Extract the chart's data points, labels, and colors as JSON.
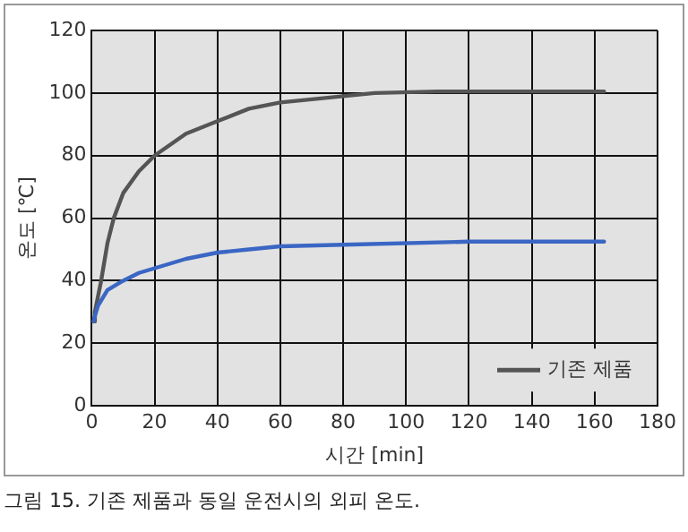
{
  "chart_data": {
    "type": "line",
    "xlabel": "시간 [min]",
    "ylabel": "온도 [℃]",
    "xlim": [
      0,
      180
    ],
    "xticks": [
      0,
      20,
      40,
      60,
      80,
      100,
      120,
      140,
      160,
      180
    ],
    "ylim": [
      0,
      120
    ],
    "yticks": [
      0,
      20,
      40,
      60,
      80,
      100,
      120
    ],
    "series": [
      {
        "color": "#3a66c4",
        "x": [
          0.5,
          2,
          5,
          10,
          15,
          20,
          30,
          40,
          50,
          60,
          80,
          120,
          163
        ],
        "values": [
          27,
          32,
          37,
          40,
          42.5,
          44,
          47,
          49,
          50,
          51,
          51.5,
          52.5,
          52.5
        ]
      },
      {
        "name": "기존 제품",
        "color": "#555555",
        "x": [
          0.5,
          1,
          3,
          5,
          7,
          10,
          15,
          20,
          30,
          40,
          50,
          60,
          80,
          90,
          110,
          163
        ],
        "values": [
          27,
          30,
          40,
          52,
          60,
          68,
          75,
          80,
          87,
          91,
          95,
          97,
          99,
          100,
          100.5,
          100.5
        ]
      }
    ],
    "grid": true,
    "legend": "bottom right",
    "marker": "none",
    "line_style": "solid",
    "annotations": [
      "그림 15. 기존 제품과 동일 운전시의 외피 온도."
    ]
  }
}
